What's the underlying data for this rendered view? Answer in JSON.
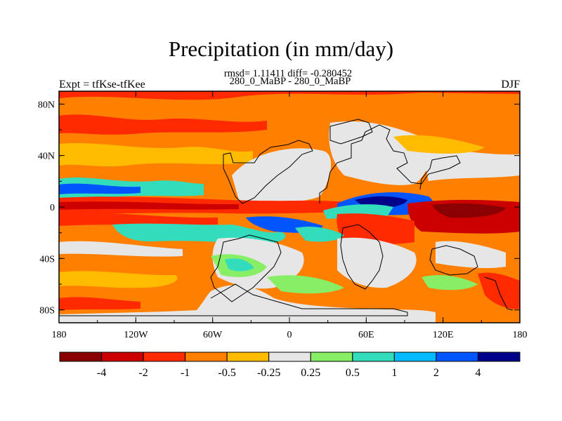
{
  "chart_data": {
    "type": "heatmap",
    "title": "Precipitation (in mm/day)",
    "stats_line": "rmsd= 1.11411 diff= -0.280452",
    "subtitle": "280_0_MaBP - 280_0_MaBP",
    "left_label": "Expt = tfKse-tfKee",
    "right_label": "DJF",
    "x_ticks": [
      "180",
      "120W",
      "60W",
      "0",
      "60E",
      "120E",
      "180"
    ],
    "y_ticks": [
      "80N",
      "40N",
      "0",
      "40S",
      "80S"
    ],
    "xlim": [
      -180,
      180
    ],
    "ylim": [
      -90,
      90
    ],
    "colorbar": {
      "labels": [
        "-4",
        "-2",
        "-1",
        "-0.5",
        "-0.25",
        "0.25",
        "0.5",
        "1",
        "2",
        "4"
      ],
      "colors": [
        "#8b0000",
        "#cc0000",
        "#ff2a00",
        "#ff7f00",
        "#ffbb00",
        "#e6e6e6",
        "#88ee66",
        "#33ddbb",
        "#00bbff",
        "#0055ff",
        "#00008b"
      ]
    }
  }
}
